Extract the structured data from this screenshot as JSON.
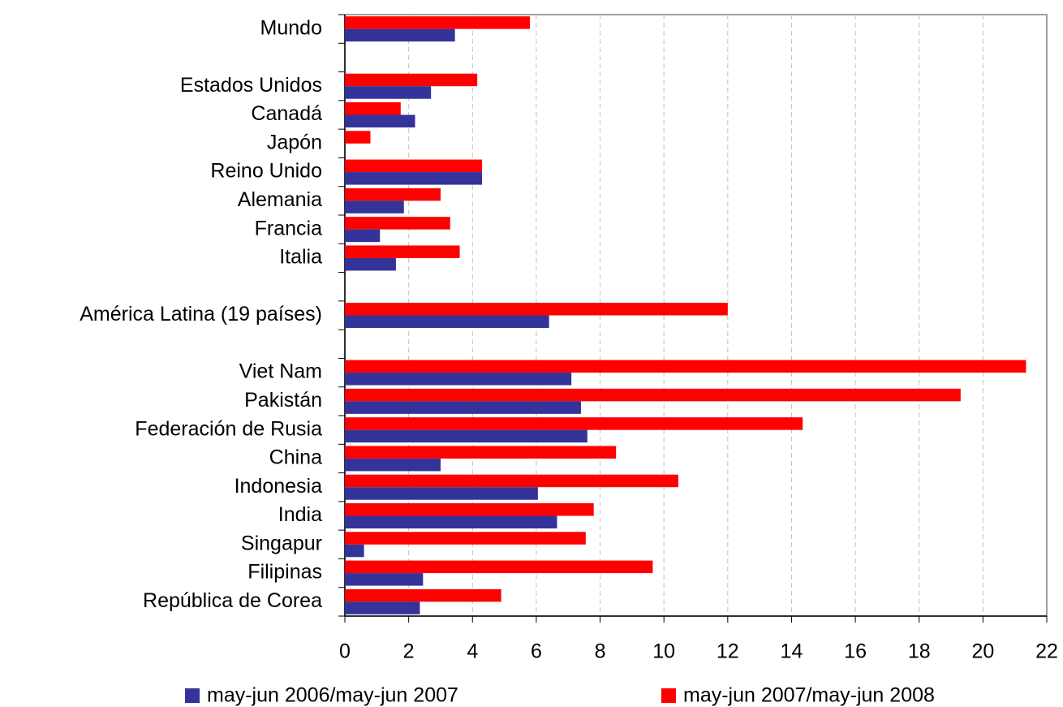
{
  "chart_data": {
    "type": "hbar",
    "categories": [
      "Mundo",
      null,
      "Estados Unidos",
      "Canadá",
      "Japón",
      "Reino Unido",
      "Alemania",
      "Francia",
      "Italia",
      null,
      "América Latina (19 países)",
      null,
      "Viet Nam",
      "Pakistán",
      "Federación de Rusia",
      "China",
      "Indonesia",
      "India",
      "Singapur",
      "Filipinas",
      "República de Corea"
    ],
    "series": [
      {
        "name": "may-jun 2006/may-jun 2007",
        "color": "#333399",
        "values": [
          3.45,
          null,
          2.7,
          2.2,
          0,
          4.3,
          1.85,
          1.1,
          1.6,
          null,
          6.4,
          null,
          7.1,
          7.4,
          7.6,
          3.0,
          6.05,
          6.65,
          0.6,
          2.45,
          2.35
        ]
      },
      {
        "name": "may-jun 2007/may-jun 2008",
        "color": "#ff0000",
        "values": [
          5.8,
          null,
          4.15,
          1.75,
          0.8,
          4.3,
          3.0,
          3.3,
          3.6,
          null,
          12.0,
          null,
          21.35,
          19.3,
          14.35,
          8.5,
          10.45,
          7.8,
          7.55,
          9.65,
          4.9
        ]
      }
    ],
    "xlim": [
      0,
      22
    ],
    "xticks": [
      0,
      2,
      4,
      6,
      8,
      10,
      12,
      14,
      16,
      18,
      20,
      22
    ],
    "grid": true,
    "legend": "bottom"
  }
}
